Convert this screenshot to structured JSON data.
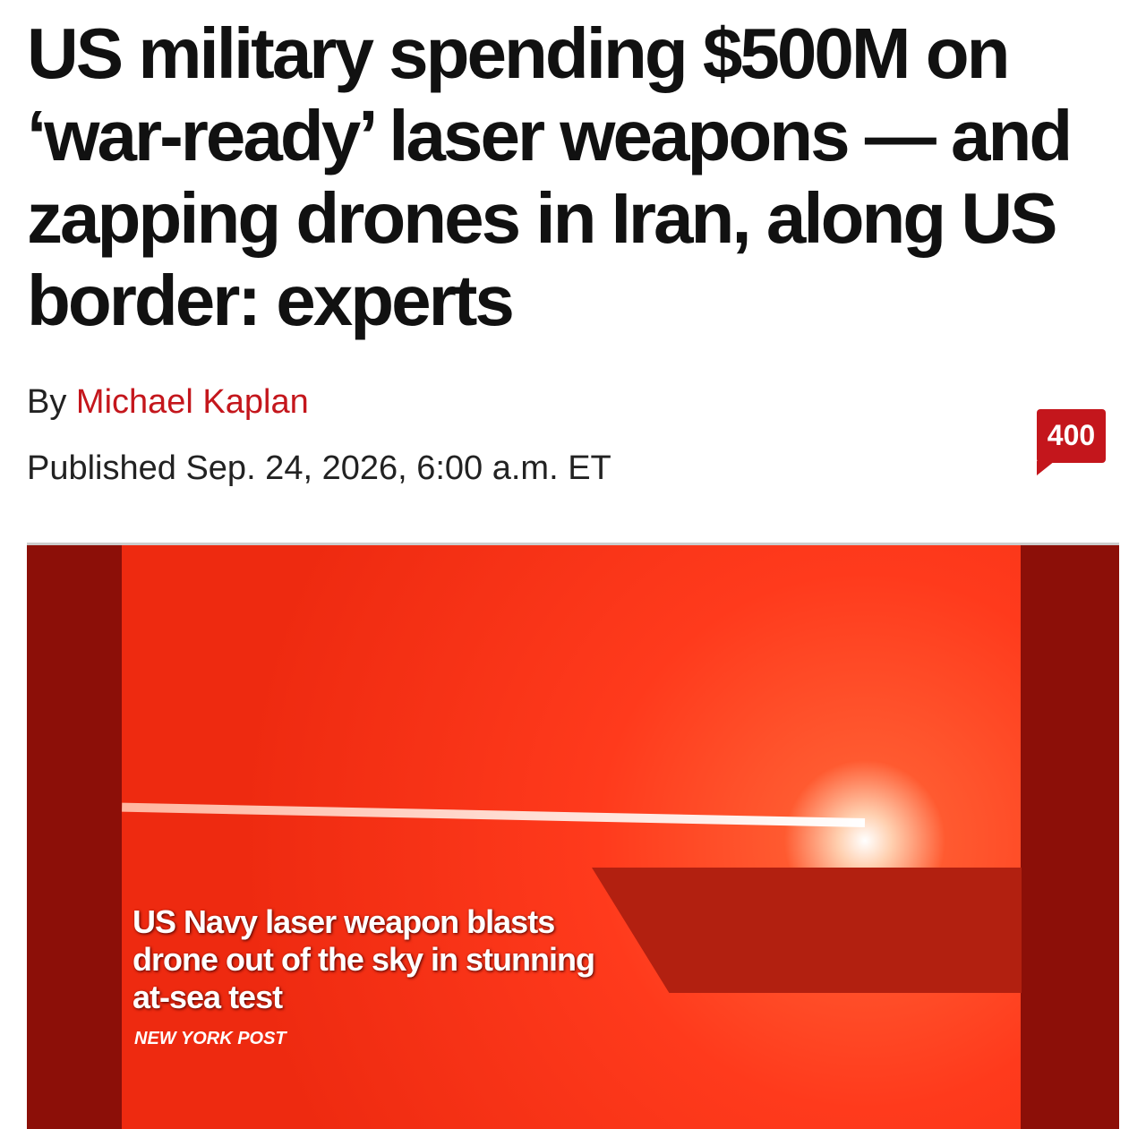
{
  "headline": "US military spending $500M on ‘war-ready’ laser weapons — and zapping drones in Iran, along US border: experts",
  "byline": {
    "prefix": "By",
    "author": "Michael Kaplan"
  },
  "published": "Published Sep. 24, 2026, 6:00 a.m. ET",
  "comments": "400",
  "video": {
    "caption": "US Navy laser weapon blasts drone out of the sky in stunning at-sea test",
    "source": "NEW YORK POST"
  }
}
